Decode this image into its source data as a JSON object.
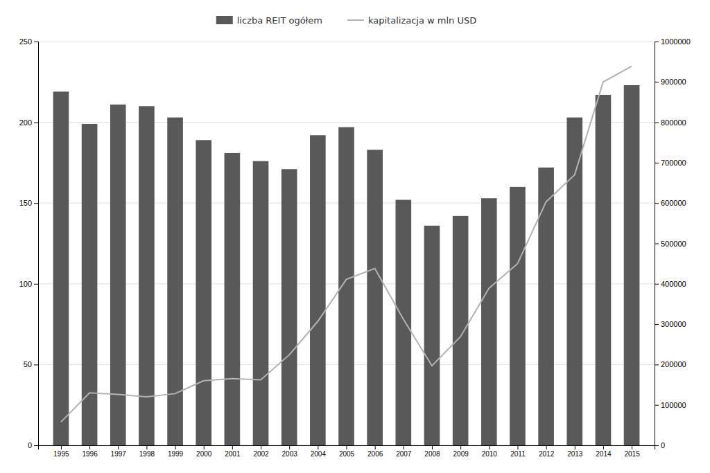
{
  "chart_data": {
    "type": "bar",
    "x": [
      1995,
      1996,
      1997,
      1998,
      1999,
      2000,
      2001,
      2002,
      2003,
      2004,
      2005,
      2006,
      2007,
      2008,
      2009,
      2010,
      2011,
      2012,
      2013,
      2014,
      2015
    ],
    "xlim": [
      1994.2,
      2015.8
    ],
    "xticks": [
      1995,
      1996,
      1997,
      1998,
      1999,
      2000,
      2001,
      2002,
      2003,
      2004,
      2005,
      2006,
      2007,
      2008,
      2009,
      2010,
      2011,
      2012,
      2013,
      2014,
      2015
    ],
    "ylim": [
      0,
      250
    ],
    "yticks": [
      0,
      50,
      100,
      150,
      200,
      250
    ],
    "y2lim": [
      0,
      1000000
    ],
    "y2ticks": [
      0,
      100000,
      200000,
      300000,
      400000,
      500000,
      600000,
      700000,
      800000,
      900000,
      1000000
    ],
    "grid": true,
    "legend": "top",
    "series": [
      {
        "name": "liczba REIT ogółem",
        "type": "bar",
        "color": "#595959",
        "values": [
          219,
          199,
          211,
          210,
          203,
          189,
          181,
          176,
          171,
          192,
          197,
          183,
          152,
          136,
          142,
          153,
          160,
          172,
          203,
          217,
          223
        ]
      },
      {
        "name": "kapitalizacja w mln USD",
        "type": "line",
        "color": "#b2b2b2",
        "axis": "y2",
        "values": [
          57600,
          130000,
          126000,
          120000,
          128000,
          160000,
          165000,
          162000,
          224000,
          307000,
          411000,
          438000,
          312000,
          197000,
          269000,
          389000,
          450000,
          603000,
          670000,
          900000,
          939000
        ]
      }
    ]
  }
}
